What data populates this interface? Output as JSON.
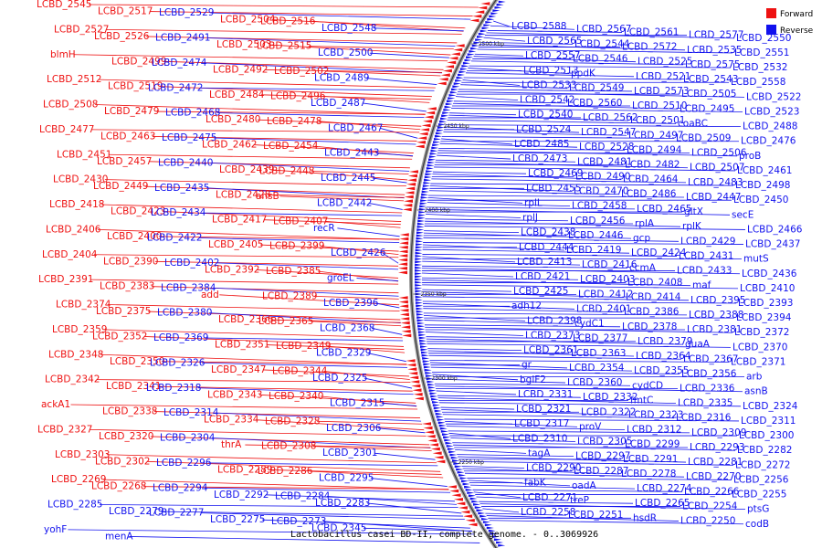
{
  "caption": "Lactobacillus casei BD-II, complete genome. - 0..3069926",
  "legend": [
    {
      "label": "Forward",
      "color": "#ee1111"
    },
    {
      "label": "Reverse",
      "color": "#1111ee"
    }
  ],
  "ticks": [
    "2500 kbp",
    "2450 kbp",
    "2400 kbp",
    "2350 kbp",
    "2300 kbp",
    "2250 kbp"
  ],
  "forward_labels": [
    "LCBD_2545",
    "LCBD_2517",
    "LCBD_2504",
    "LCBD_2516",
    "LCBD_2527",
    "LCBD_2526",
    "LCBD_2503",
    "LCBD_2515",
    "blmH",
    "LCBD_2499",
    "LCBD_2492",
    "LCBD_2502",
    "LCBD_2512",
    "LCBD_2519",
    "LCBD_2484",
    "LCBD_2496",
    "LCBD_2508",
    "LCBD_2479",
    "LCBD_2480",
    "LCBD_2478",
    "LCBD_2477",
    "LCBD_2463",
    "LCBD_2462",
    "LCBD_2454",
    "LCBD_2451",
    "LCBD_2457",
    "LCBD_2439",
    "LCBD_2448",
    "LCBD_2430",
    "LCBD_2449",
    "LCBD_2428",
    "ansB",
    "LCBD_2418",
    "LCBD_2423",
    "LCBD_2417",
    "LCBD_2407",
    "LCBD_2406",
    "LCBD_2400",
    "LCBD_2405",
    "LCBD_2399",
    "LCBD_2404",
    "LCBD_2390",
    "LCBD_2392",
    "LCBD_2385",
    "LCBD_2391",
    "LCBD_2383",
    "add",
    "LCBD_2389",
    "LCBD_2374",
    "LCBD_2375",
    "LCBD_2366",
    "LCBD_2365",
    "LCBD_2359",
    "LCBD_2352",
    "LCBD_2351",
    "LCBD_2349",
    "LCBD_2348",
    "LCBD_2350",
    "LCBD_2347",
    "LCBD_2344",
    "LCBD_2342",
    "LCBD_2341",
    "LCBD_2343",
    "LCBD_2340",
    "ackA1",
    "LCBD_2338",
    "LCBD_2334",
    "LCBD_2328",
    "LCBD_2327",
    "LCBD_2320",
    "thrA",
    "LCBD_2308",
    "LCBD_2303",
    "LCBD_2302",
    "LCBD_2289",
    "LCBD_2286",
    "LCBD_2269",
    "LCBD_2268"
  ],
  "reverse_labels_left": [
    "LCBD_2529",
    "LCBD_2548",
    "LCBD_2491",
    "LCBD_2500",
    "LCBD_2474",
    "LCBD_2489",
    "LCBD_2472",
    "LCBD_2487",
    "LCBD_2468",
    "LCBD_2467",
    "LCBD_2475",
    "LCBD_2443",
    "LCBD_2440",
    "LCBD_2445",
    "LCBD_2435",
    "LCBD_2442",
    "LCBD_2434",
    "recR",
    "LCBD_2422",
    "LCBD_2426",
    "LCBD_2402",
    "groEL",
    "LCBD_2384",
    "LCBD_2396",
    "LCBD_2380",
    "LCBD_2368",
    "LCBD_2369",
    "LCBD_2329",
    "LCBD_2326",
    "LCBD_2325",
    "LCBD_2318",
    "LCBD_2315",
    "LCBD_2314",
    "LCBD_2306",
    "LCBD_2304",
    "LCBD_2301",
    "LCBD_2296",
    "LCBD_2295",
    "LCBD_2294",
    "LCBD_2292",
    "LCBD_2284",
    "LCBD_2283",
    "LCBD_2285",
    "LCBD_2279",
    "LCBD_2277",
    "LCBD_2275",
    "LCBD_2273",
    "LCBD_2345",
    "yohF",
    "menA"
  ],
  "reverse_labels_right": [
    "LCBD_2588",
    "LCBD_2567",
    "LCBD_2561",
    "LCBD_2577",
    "LCBD_2550",
    "LCBD_2565",
    "LCBD_2544",
    "LCBD_2572",
    "LCBD_2535",
    "LCBD_2551",
    "LCBD_2557",
    "LCBD_2546",
    "LCBD_2525",
    "LCBD_2575",
    "LCBD_2532",
    "LCBD_2513",
    "ppdK",
    "LCBD_2521",
    "LCBD_2543",
    "LCBD_2558",
    "LCBD_2533",
    "LCBD_2549",
    "LCBD_2573",
    "LCBD_2505",
    "LCBD_2522",
    "LCBD_2542",
    "LCBD_2560",
    "LCBD_2510",
    "LCBD_2495",
    "LCBD_2523",
    "LCBD_2540",
    "LCBD_2562",
    "LCBD_2501",
    "coaBC",
    "LCBD_2488",
    "LCBD_2524",
    "LCBD_2547",
    "LCBD_2497",
    "LCBD_2509",
    "LCBD_2476",
    "LCBD_2485",
    "LCBD_2528",
    "LCBD_2494",
    "LCBD_2506",
    "proB",
    "LCBD_2473",
    "LCBD_2481",
    "LCBD_2482",
    "LCBD_2507",
    "LCBD_2461",
    "LCBD_2469",
    "LCBD_2490",
    "LCBD_2464",
    "LCBD_2483",
    "LCBD_2498",
    "LCBD_2455",
    "LCBD_2470",
    "LCBD_2486",
    "LCBD_2447",
    "LCBD_2450",
    "rplL",
    "LCBD_2458",
    "LCBD_2465",
    "gltX",
    "secE",
    "rplJ",
    "LCBD_2456",
    "rplA",
    "rplK",
    "LCBD_2466",
    "LCBD_2438",
    "LCBD_2446",
    "gcp",
    "LCBD_2429",
    "LCBD_2437",
    "LCBD_2444",
    "LCBD_2419",
    "LCBD_2424",
    "LCBD_2431",
    "mutS",
    "LCBD_2413",
    "LCBD_2416",
    "ccmA",
    "LCBD_2433",
    "LCBD_2436",
    "LCBD_2421",
    "LCBD_2403",
    "LCBD_2408",
    "maf",
    "LCBD_2410",
    "LCBD_2425",
    "LCBD_2412",
    "LCBD_2414",
    "LCBD_2395",
    "LCBD_2393",
    "adh12",
    "LCBD_2401",
    "LCBD_2386",
    "LCBD_2388",
    "LCBD_2394",
    "LCBD_2398",
    "cydC1",
    "LCBD_2378",
    "LCBD_2381",
    "LCBD_2372",
    "LCBD_2373",
    "LCBD_2377",
    "LCBD_2379",
    "guaA",
    "LCBD_2370",
    "LCBD_2361",
    "LCBD_2363",
    "LCBD_2364",
    "LCBD_2367",
    "LCBD_2371",
    "gr",
    "LCBD_2354",
    "LCBD_2355",
    "LCBD_2356",
    "arb",
    "bglF2",
    "LCBD_2360",
    "cydCD",
    "LCBD_2336",
    "asnB",
    "LCBD_2331",
    "LCBD_2332",
    "fmtC",
    "LCBD_2335",
    "LCBD_2324",
    "LCBD_2321",
    "LCBD_2322",
    "LCBD_2323",
    "LCBD_2316",
    "LCBD_2311",
    "LCBD_2317",
    "proV",
    "LCBD_2312",
    "LCBD_2309",
    "LCBD_2300",
    "LCBD_2310",
    "LCBD_2305",
    "LCBD_2299",
    "LCBD_2293",
    "LCBD_2282",
    "tagA",
    "LCBD_2297",
    "LCBD_2291",
    "LCBD_2281",
    "LCBD_2272",
    "LCBD_2290",
    "LCBD_2287",
    "LCBD_2278",
    "LCBD_2270",
    "LCBD_2256",
    "fabK",
    "oadA",
    "LCBD_2274",
    "LCBD_2266",
    "LCBD_2255",
    "LCBD_2271",
    "treP",
    "LCBD_2265",
    "LCBD_2254",
    "ptsG",
    "LCBD_2258",
    "LCBD_2251",
    "hsdR",
    "LCBD_2250",
    "codB"
  ]
}
